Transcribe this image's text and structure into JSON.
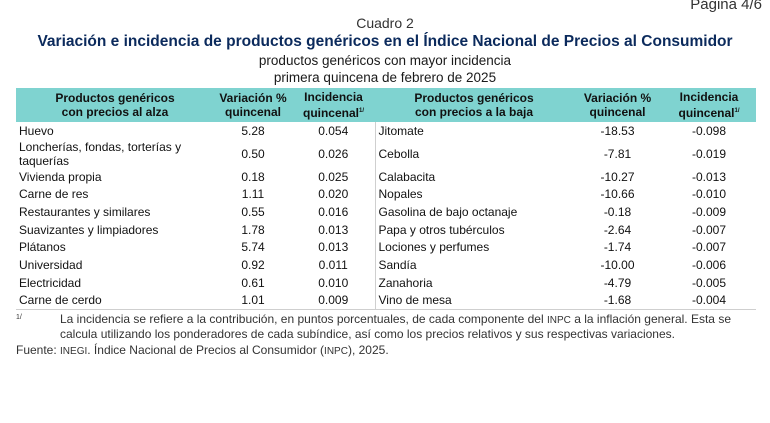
{
  "page_label": "Página 4/6",
  "cuadro": "Cuadro 2",
  "title": "Variación e incidencia de productos genéricos en el Índice Nacional de Precios al Consumidor",
  "subtitle_line1": "productos genéricos con mayor incidencia",
  "subtitle_line2": "primera quincena de febrero de 2025",
  "table": {
    "headers": {
      "up_products_line1": "Productos genéricos",
      "up_products_line2": "con precios al alza",
      "variation_line1": "Variación %",
      "variation_line2": "quincenal",
      "incidence_line1": "Incidencia",
      "incidence_line2": "quincenal",
      "incidence_footnote": "1/",
      "down_products_line1": "Productos genéricos",
      "down_products_line2": "con precios a la baja"
    },
    "rows": [
      {
        "up_name": "Huevo",
        "up_var": "5.28",
        "up_inc": "0.054",
        "down_name": "Jitomate",
        "down_var": "-18.53",
        "down_inc": "-0.098"
      },
      {
        "up_name": "Loncherías, fondas, torterías y taquerías",
        "up_var": "0.50",
        "up_inc": "0.026",
        "down_name": "Cebolla",
        "down_var": "-7.81",
        "down_inc": "-0.019"
      },
      {
        "up_name": "Vivienda propia",
        "up_var": "0.18",
        "up_inc": "0.025",
        "down_name": "Calabacita",
        "down_var": "-10.27",
        "down_inc": "-0.013"
      },
      {
        "up_name": "Carne de res",
        "up_var": "1.11",
        "up_inc": "0.020",
        "down_name": "Nopales",
        "down_var": "-10.66",
        "down_inc": "-0.010"
      },
      {
        "up_name": "Restaurantes y similares",
        "up_var": "0.55",
        "up_inc": "0.016",
        "down_name": "Gasolina de bajo octanaje",
        "down_var": "-0.18",
        "down_inc": "-0.009"
      },
      {
        "up_name": "Suavizantes y limpiadores",
        "up_var": "1.78",
        "up_inc": "0.013",
        "down_name": "Papa y otros tubérculos",
        "down_var": "-2.64",
        "down_inc": "-0.007"
      },
      {
        "up_name": "Plátanos",
        "up_var": "5.74",
        "up_inc": "0.013",
        "down_name": "Lociones y perfumes",
        "down_var": "-1.74",
        "down_inc": "-0.007"
      },
      {
        "up_name": "Universidad",
        "up_var": "0.92",
        "up_inc": "0.011",
        "down_name": "Sandía",
        "down_var": "-10.00",
        "down_inc": "-0.006"
      },
      {
        "up_name": "Electricidad",
        "up_var": "0.61",
        "up_inc": "0.010",
        "down_name": "Zanahoria",
        "down_var": "-4.79",
        "down_inc": "-0.005"
      },
      {
        "up_name": "Carne de cerdo",
        "up_var": "1.01",
        "up_inc": "0.009",
        "down_name": "Vino de mesa",
        "down_var": "-1.68",
        "down_inc": "-0.004"
      }
    ]
  },
  "footnote": {
    "mark": "1/",
    "text_before": "La incidencia se refiere a la contribución, en puntos porcentuales, de cada componente del ",
    "abbr": "INPC",
    "text_after": " a la inflación general. Esta se calcula utilizando los ponderadores de cada subíndice, así como los precios relativos y sus respectivas variaciones."
  },
  "source": {
    "label": "Fuente: ",
    "org": "INEGI",
    "mid": ". Índice Nacional de Precios al Consumidor (",
    "abbr": "INPC",
    "end": "), 2025."
  },
  "colors": {
    "header_bg": "#7fd3d0",
    "title": "#0b2a5c"
  }
}
